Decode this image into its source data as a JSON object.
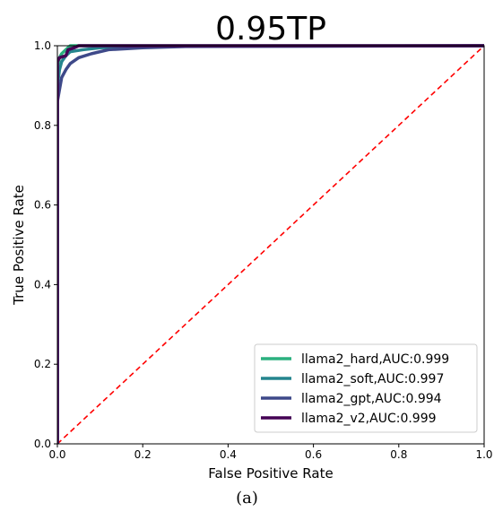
{
  "caption": "(a)",
  "chart_data": {
    "type": "line",
    "title": "0.95TP",
    "xlabel": "False Positive Rate",
    "ylabel": "True Positive Rate",
    "xlim": [
      0.0,
      1.0
    ],
    "ylim": [
      0.0,
      1.0
    ],
    "xticks": [
      "0.0",
      "0.2",
      "0.4",
      "0.6",
      "0.8",
      "1.0"
    ],
    "yticks": [
      "0.0",
      "0.2",
      "0.4",
      "0.6",
      "0.8",
      "1.0"
    ],
    "grid": false,
    "legend_position": "lower-right",
    "series": [
      {
        "name": "llama2_hard,AUC:0.999",
        "color": "#2bb07f",
        "points": [
          [
            0.0,
            0.0
          ],
          [
            0.0,
            0.95
          ],
          [
            0.005,
            0.97
          ],
          [
            0.01,
            0.98
          ],
          [
            0.02,
            0.99
          ],
          [
            0.03,
            1.0
          ],
          [
            1.0,
            1.0
          ]
        ]
      },
      {
        "name": "llama2_soft,AUC:0.997",
        "color": "#25858e",
        "points": [
          [
            0.0,
            0.0
          ],
          [
            0.0,
            0.9
          ],
          [
            0.005,
            0.94
          ],
          [
            0.01,
            0.96
          ],
          [
            0.02,
            0.975
          ],
          [
            0.03,
            0.985
          ],
          [
            0.06,
            0.99
          ],
          [
            0.1,
            0.995
          ],
          [
            0.2,
            0.998
          ],
          [
            1.0,
            1.0
          ]
        ]
      },
      {
        "name": "llama2_gpt,AUC:0.994",
        "color": "#3e4989",
        "points": [
          [
            0.0,
            0.0
          ],
          [
            0.0,
            0.86
          ],
          [
            0.005,
            0.89
          ],
          [
            0.01,
            0.92
          ],
          [
            0.02,
            0.94
          ],
          [
            0.03,
            0.955
          ],
          [
            0.05,
            0.97
          ],
          [
            0.08,
            0.98
          ],
          [
            0.12,
            0.99
          ],
          [
            0.2,
            0.995
          ],
          [
            0.3,
            0.998
          ],
          [
            1.0,
            1.0
          ]
        ]
      },
      {
        "name": "llama2_v2,AUC:0.999",
        "color": "#440154",
        "points": [
          [
            0.0,
            0.0
          ],
          [
            0.0,
            0.96
          ],
          [
            0.005,
            0.97
          ],
          [
            0.02,
            0.975
          ],
          [
            0.025,
            0.99
          ],
          [
            0.04,
            0.995
          ],
          [
            0.05,
            1.0
          ],
          [
            1.0,
            1.0
          ]
        ]
      }
    ],
    "diagonal": {
      "color": "#ff0000",
      "points": [
        [
          0.0,
          0.0
        ],
        [
          1.0,
          1.0
        ]
      ]
    }
  }
}
